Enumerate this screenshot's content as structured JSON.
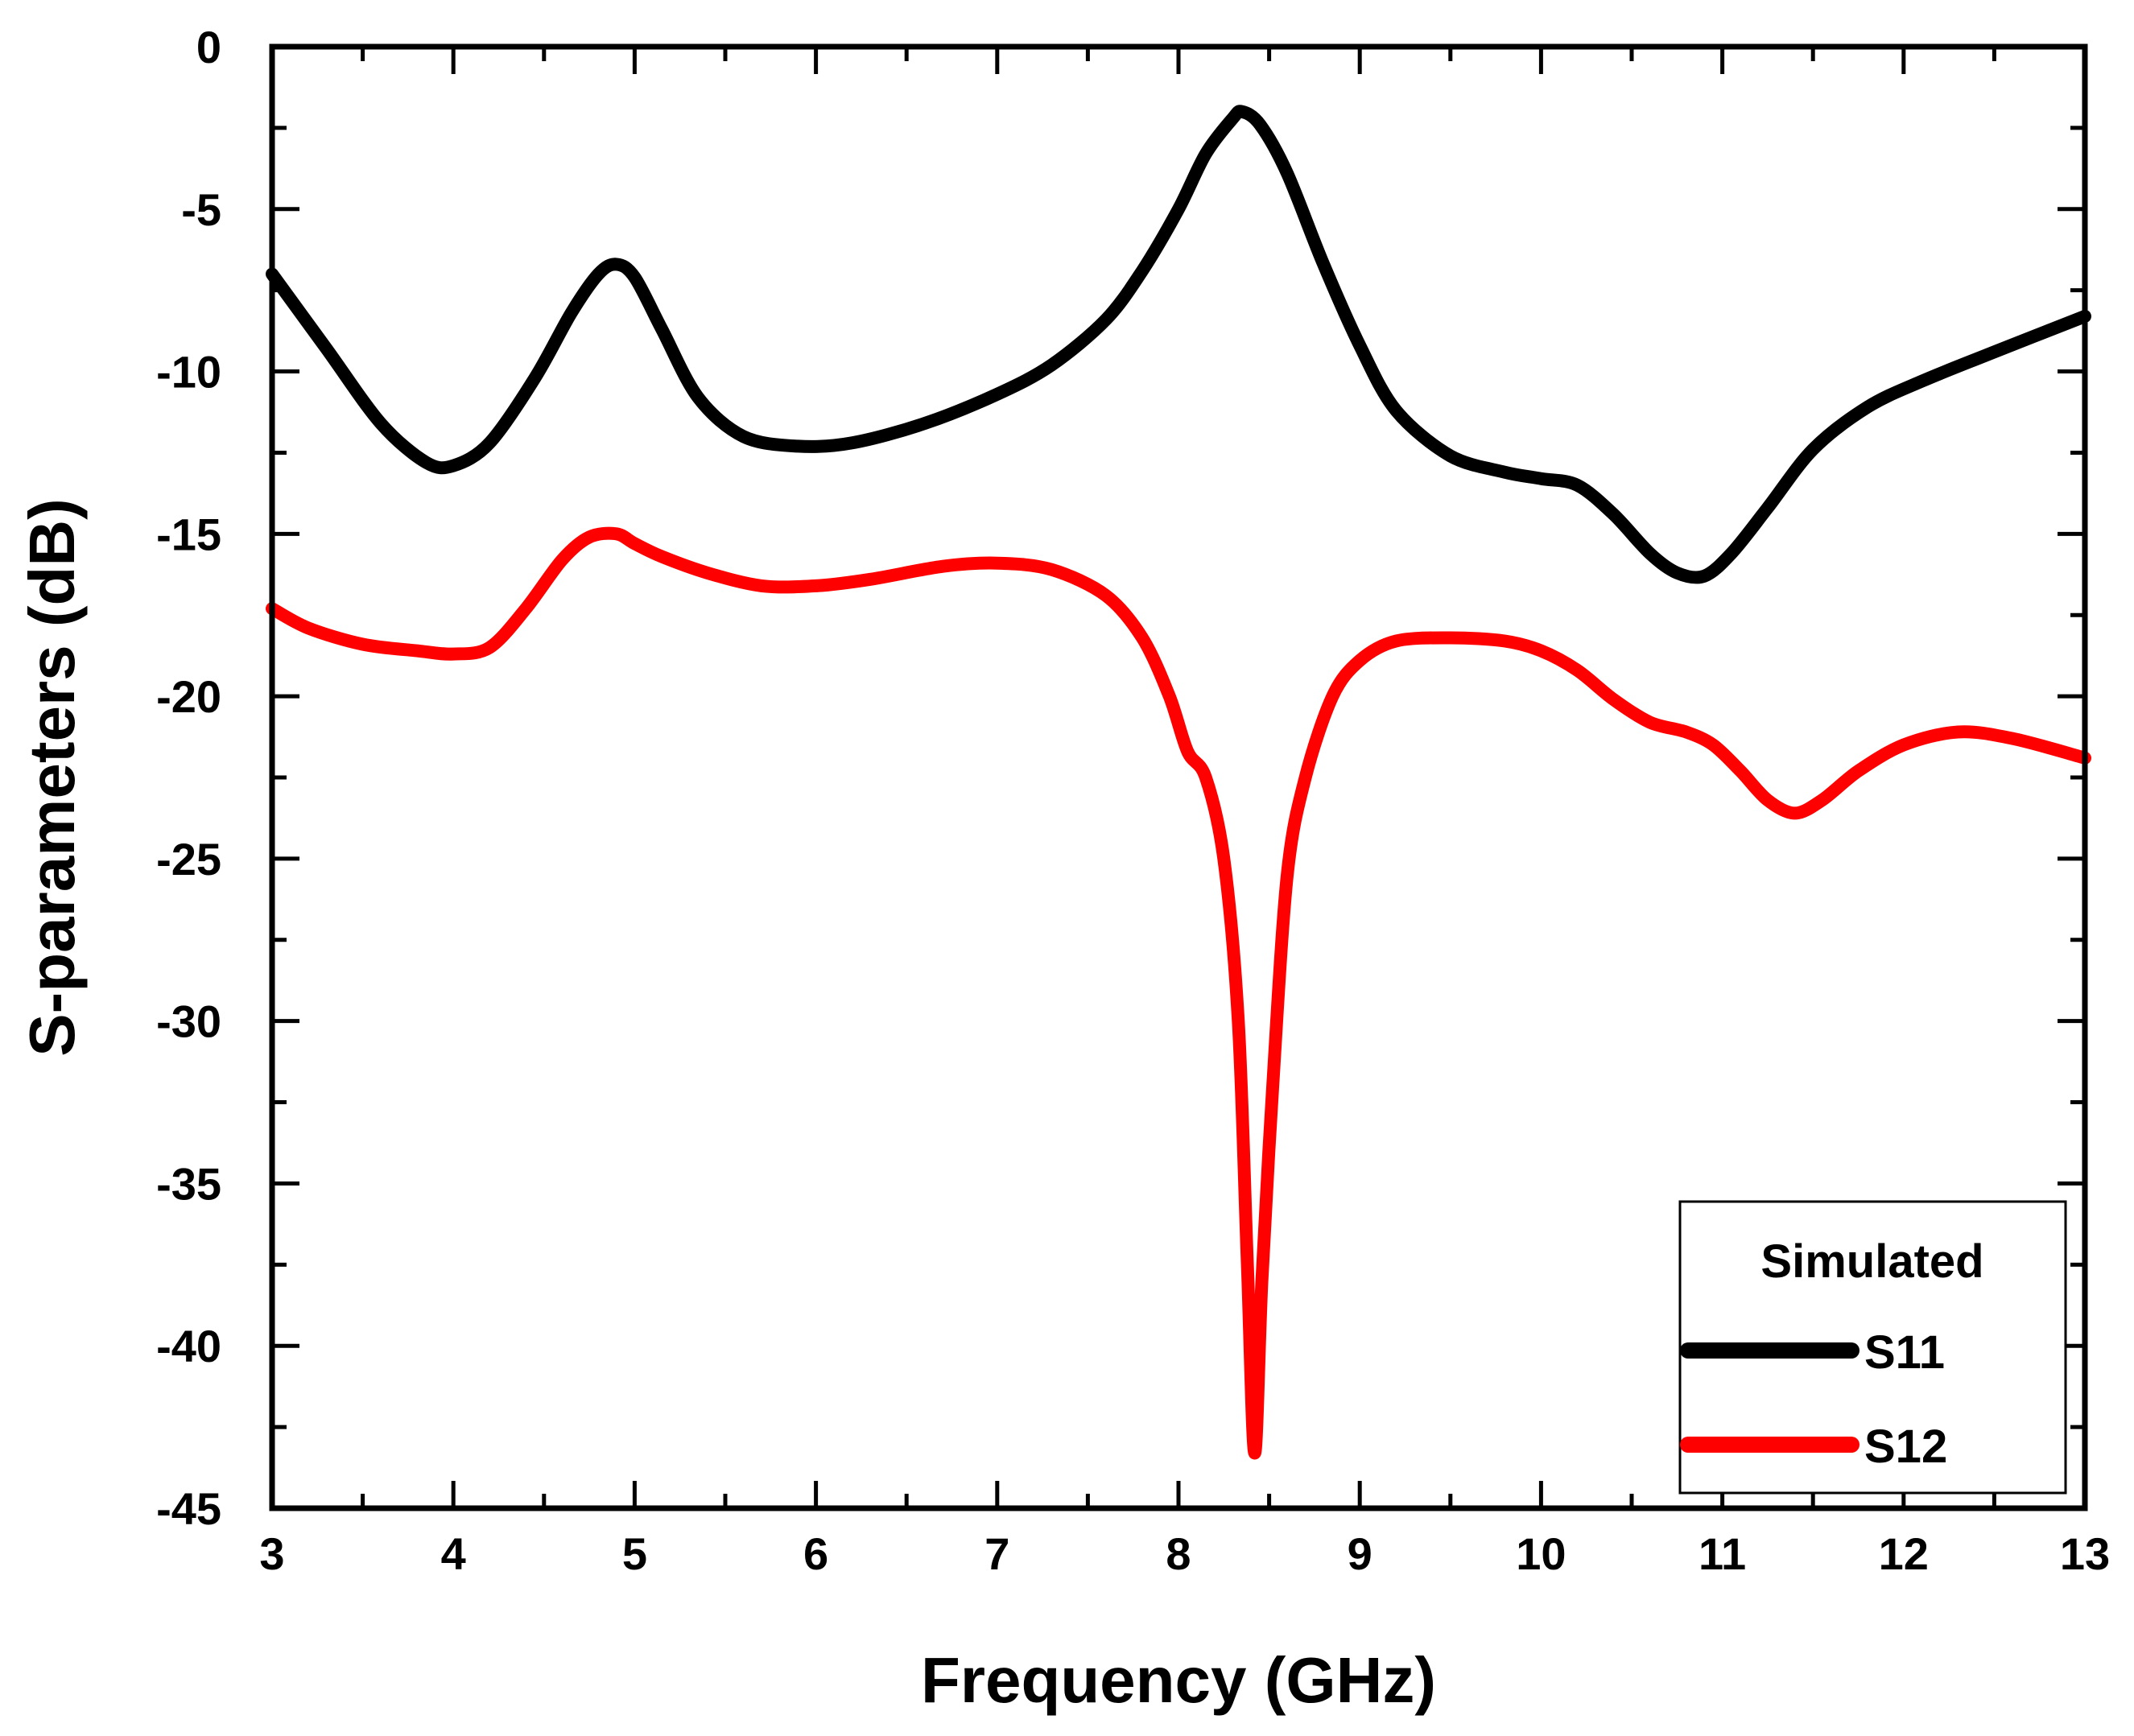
{
  "chart_data": {
    "type": "line",
    "title": "",
    "xlabel": "Frequency (GHz)",
    "ylabel": "S-parameters (dB)",
    "xlim": [
      3,
      13
    ],
    "ylim": [
      -45,
      0
    ],
    "xticks": [
      3,
      4,
      5,
      6,
      7,
      8,
      9,
      10,
      11,
      12,
      13
    ],
    "yticks": [
      0,
      -5,
      -10,
      -15,
      -20,
      -25,
      -30,
      -35,
      -40,
      -45
    ],
    "xtick_labels": [
      "3",
      "4",
      "5",
      "6",
      "7",
      "8",
      "9",
      "10",
      "11",
      "12",
      "13"
    ],
    "ytick_labels": [
      "0",
      "-5",
      "-10",
      "-15",
      "-20",
      "-25",
      "-30",
      "-35",
      "-40",
      "-45"
    ],
    "grid": false,
    "legend": {
      "title": "Simulated",
      "position": "bottom-right"
    },
    "series": [
      {
        "name": "S11",
        "color": "#000000",
        "x": [
          3.0,
          3.3,
          3.6,
          3.85,
          4.0,
          4.2,
          4.45,
          4.65,
          4.8,
          4.9,
          5.0,
          5.15,
          5.35,
          5.6,
          5.9,
          6.2,
          6.6,
          7.0,
          7.3,
          7.6,
          7.8,
          8.0,
          8.15,
          8.3,
          8.35,
          8.45,
          8.6,
          8.8,
          9.0,
          9.2,
          9.5,
          9.8,
          10.0,
          10.2,
          10.4,
          10.6,
          10.75,
          10.9,
          11.05,
          11.25,
          11.5,
          11.8,
          12.1,
          12.5,
          13.0
        ],
        "values": [
          -7.0,
          -9.3,
          -11.6,
          -12.8,
          -12.9,
          -12.2,
          -10.2,
          -8.2,
          -7.0,
          -6.7,
          -7.1,
          -8.7,
          -10.8,
          -12.0,
          -12.3,
          -12.2,
          -11.6,
          -10.7,
          -9.8,
          -8.4,
          -6.9,
          -5.0,
          -3.3,
          -2.2,
          -2.0,
          -2.4,
          -3.9,
          -6.7,
          -9.2,
          -11.2,
          -12.6,
          -13.1,
          -13.3,
          -13.5,
          -14.4,
          -15.6,
          -16.2,
          -16.3,
          -15.6,
          -14.2,
          -12.4,
          -11.1,
          -10.3,
          -9.4,
          -8.3
        ]
      },
      {
        "name": "S12",
        "color": "#ff0000",
        "x": [
          3.0,
          3.2,
          3.5,
          3.8,
          4.0,
          4.2,
          4.4,
          4.6,
          4.75,
          4.9,
          5.0,
          5.15,
          5.4,
          5.7,
          6.0,
          6.3,
          6.7,
          7.0,
          7.3,
          7.6,
          7.8,
          7.95,
          8.05,
          8.15,
          8.25,
          8.33,
          8.38,
          8.42,
          8.46,
          8.52,
          8.6,
          8.7,
          8.85,
          9.0,
          9.2,
          9.5,
          9.8,
          10.0,
          10.2,
          10.4,
          10.6,
          10.8,
          10.95,
          11.1,
          11.25,
          11.4,
          11.55,
          11.75,
          12.0,
          12.3,
          12.6,
          13.0
        ],
        "values": [
          -17.3,
          -17.9,
          -18.4,
          -18.6,
          -18.7,
          -18.5,
          -17.3,
          -15.8,
          -15.1,
          -15.0,
          -15.3,
          -15.7,
          -16.2,
          -16.6,
          -16.6,
          -16.4,
          -16.0,
          -15.9,
          -16.1,
          -16.9,
          -18.2,
          -20.0,
          -21.7,
          -22.5,
          -25.0,
          -30.0,
          -37.5,
          -43.3,
          -38.0,
          -32.0,
          -25.5,
          -22.5,
          -20.0,
          -18.9,
          -18.3,
          -18.2,
          -18.3,
          -18.6,
          -19.2,
          -20.1,
          -20.8,
          -21.1,
          -21.5,
          -22.3,
          -23.2,
          -23.6,
          -23.2,
          -22.3,
          -21.5,
          -21.1,
          -21.3,
          -21.9
        ]
      }
    ]
  }
}
